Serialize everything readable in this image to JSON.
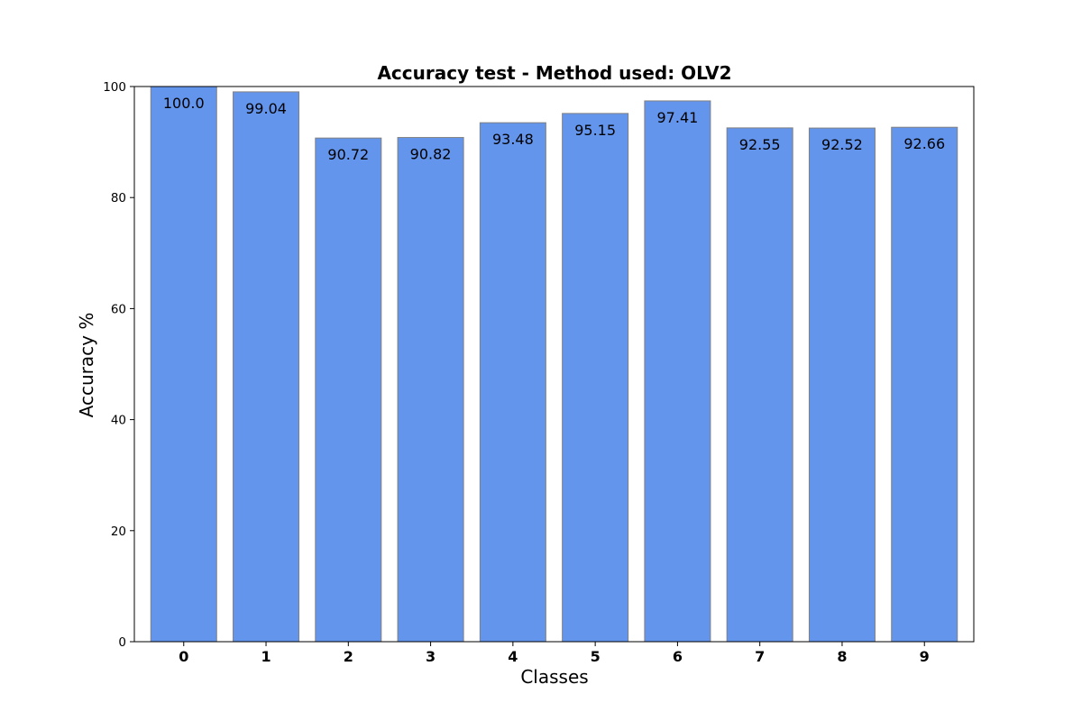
{
  "chart_data": {
    "type": "bar",
    "title": "Accuracy test - Method used: OLV2",
    "xlabel": "Classes",
    "ylabel": "Accuracy %",
    "categories": [
      "0",
      "1",
      "2",
      "3",
      "4",
      "5",
      "6",
      "7",
      "8",
      "9"
    ],
    "values": [
      100.0,
      99.04,
      90.72,
      90.82,
      93.48,
      95.15,
      97.41,
      92.55,
      92.52,
      92.66
    ],
    "value_labels": [
      "100.0",
      "99.04",
      "90.72",
      "90.82",
      "93.48",
      "95.15",
      "97.41",
      "92.55",
      "92.52",
      "92.66"
    ],
    "ylim": [
      0,
      100
    ],
    "yticks": [
      0,
      20,
      40,
      60,
      80,
      100
    ],
    "grid": false,
    "legend": "none",
    "colors": {
      "bar_fill": "#6495ED",
      "bar_edge": "#808080",
      "axis": "#000000"
    }
  }
}
